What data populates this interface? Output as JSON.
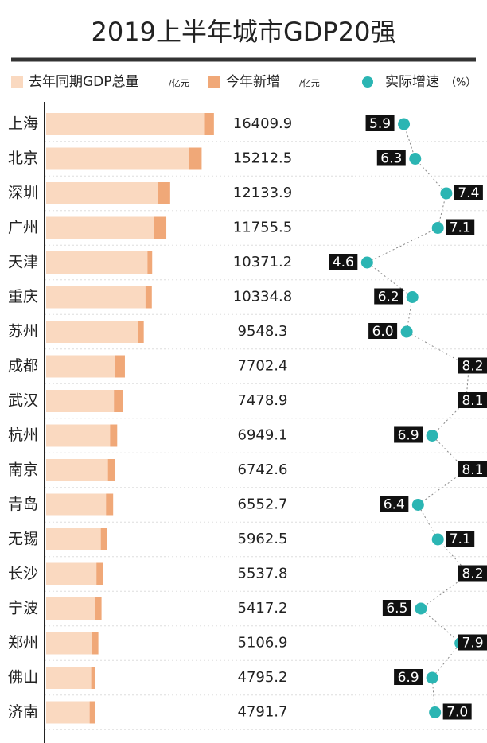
{
  "chart_data": {
    "type": "bar",
    "title": "2019上半年城市GDP20强",
    "categories": [
      "上海",
      "北京",
      "深圳",
      "广州",
      "天津",
      "重庆",
      "苏州",
      "成都",
      "武汉",
      "杭州",
      "南京",
      "青岛",
      "无锡",
      "长沙",
      "宁波",
      "郑州",
      "佛山",
      "济南"
    ],
    "xlim": [
      0,
      16500
    ],
    "series": [
      {
        "name": "去年同期GDP总量",
        "unit": "/亿元",
        "color": "#fad9c0",
        "values": [
          15450,
          13980,
          10960,
          10525,
          9910,
          9715,
          9008,
          6772,
          6629,
          6249,
          6043,
          5853,
          5343,
          4918,
          4797,
          4487,
          4405,
          4252
        ]
      },
      {
        "name": "今年新增",
        "unit": "/亿元",
        "color": "#f0a878",
        "values": [
          960,
          1230,
          1170,
          1230,
          460,
          620,
          540,
          930,
          850,
          700,
          700,
          700,
          620,
          620,
          620,
          620,
          390,
          540
        ]
      }
    ],
    "gdp": [
      16409.9,
      15212.5,
      12133.9,
      11755.5,
      10371.2,
      10334.8,
      9548.3,
      7702.4,
      7478.9,
      6949.1,
      6742.6,
      6552.7,
      5962.5,
      5537.8,
      5417.2,
      5106.9,
      4795.2,
      4791.7
    ],
    "growth": {
      "name": "实际增速",
      "unit": "（%）",
      "color": "#2bb5b3",
      "x2lim": [
        4,
        8.5
      ],
      "values": [
        5.9,
        6.3,
        7.4,
        7.1,
        4.6,
        6.2,
        6.0,
        8.2,
        8.1,
        6.9,
        8.1,
        6.4,
        7.1,
        8.2,
        6.5,
        7.9,
        6.9,
        7.0
      ],
      "value_labels": [
        "5.9",
        "6.3",
        "7.4",
        "7.1",
        "4.6",
        "6.2",
        "6.0",
        "8.2",
        "8.1",
        "6.9",
        "8.1",
        "6.4",
        "7.1",
        "8.2",
        "6.5",
        "7.9",
        "6.9",
        "7.0"
      ]
    }
  }
}
